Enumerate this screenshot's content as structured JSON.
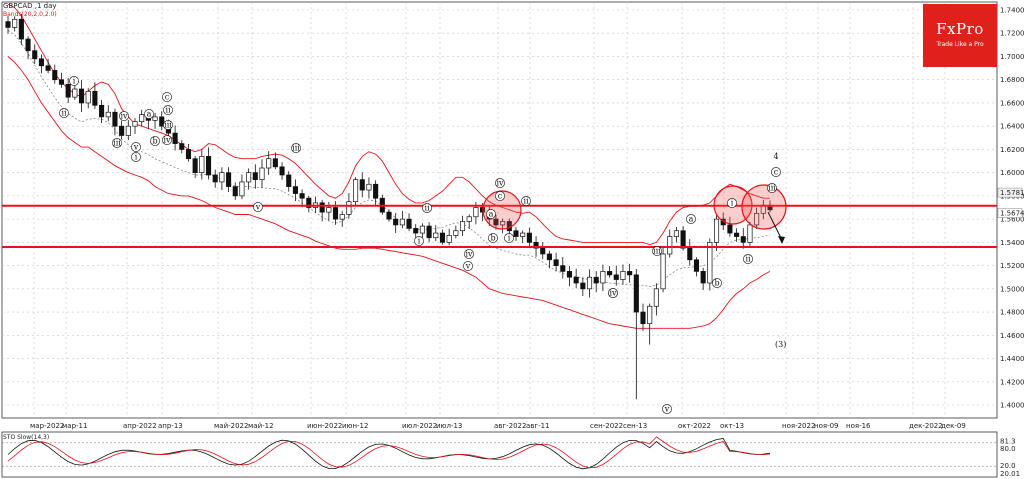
{
  "header": {
    "symbol": "GBPCAD ,1 day",
    "indicator": "Bands(20,2,0,2.0)"
  },
  "logo": {
    "brand": "FxPro",
    "tagline": "Trade Like a Pro"
  },
  "chart_data": {
    "type": "candlestick",
    "ylim": [
      1.38,
      1.75
    ],
    "y_ticks": [
      "1.7400",
      "1.7200",
      "1.7000",
      "1.6800",
      "1.6600",
      "1.6400",
      "1.6200",
      "1.6000",
      "1.5800",
      "1.5600",
      "1.5400",
      "1.5200",
      "1.5000",
      "1.4800",
      "1.4600",
      "1.4400",
      "1.4200",
      "1.4000"
    ],
    "y_tick_values": [
      1.74,
      1.72,
      1.7,
      1.68,
      1.66,
      1.64,
      1.62,
      1.6,
      1.58,
      1.56,
      1.54,
      1.52,
      1.5,
      1.48,
      1.46,
      1.44,
      1.42,
      1.4
    ],
    "x_ticks": [
      "мар-2022",
      "мар-11",
      "апр-2022",
      "апр-13",
      "май-2022",
      "май-12",
      "июн-2022",
      "июн-12",
      "июл-2022",
      "июл-13",
      "авг-2022",
      "авг-11",
      "сен-2022",
      "сен-13",
      "окт-2022",
      "окт-13",
      "ноя-2022",
      "ноя-09",
      "ноя-16",
      "дек-2022",
      "дек-09"
    ],
    "price_labels": [
      {
        "text": "1.5781",
        "value": 1.5781
      },
      {
        "text": "1.5674",
        "value": 1.5674
      }
    ],
    "levels": [
      {
        "name": "resistance",
        "value": 1.5715,
        "color": "#e3141b"
      },
      {
        "name": "support",
        "value": 1.536,
        "color": "#e3141b"
      }
    ],
    "closes": [
      1.725,
      1.732,
      1.715,
      1.705,
      1.698,
      1.692,
      1.688,
      1.68,
      1.676,
      1.665,
      1.672,
      1.66,
      1.67,
      1.658,
      1.648,
      1.652,
      1.64,
      1.632,
      1.64,
      1.644,
      1.65,
      1.645,
      1.648,
      1.64,
      1.634,
      1.625,
      1.62,
      1.612,
      1.6,
      1.614,
      1.598,
      1.592,
      1.6,
      1.588,
      1.58,
      1.592,
      1.6,
      1.594,
      1.604,
      1.612,
      1.605,
      1.598,
      1.588,
      1.582,
      1.578,
      1.57,
      1.574,
      1.566,
      1.57,
      1.56,
      1.564,
      1.575,
      1.594,
      1.585,
      1.59,
      1.578,
      1.566,
      1.56,
      1.555,
      1.56,
      1.552,
      1.548,
      1.554,
      1.544,
      1.548,
      1.54,
      1.546,
      1.55,
      1.558,
      1.562,
      1.57,
      1.566,
      1.56,
      1.555,
      1.558,
      1.55,
      1.545,
      1.548,
      1.54,
      1.535,
      1.53,
      1.525,
      1.52,
      1.515,
      1.51,
      1.505,
      1.5,
      1.51,
      1.505,
      1.515,
      1.512,
      1.508,
      1.515,
      1.512,
      1.48,
      1.47,
      1.485,
      1.5,
      1.53,
      1.545,
      1.55,
      1.535,
      1.525,
      1.515,
      1.505,
      1.54,
      1.56,
      1.555,
      1.548,
      1.545,
      1.54,
      1.555,
      1.565,
      1.572,
      1.568
    ],
    "bb_upper": [
      1.745,
      1.742,
      1.735,
      1.725,
      1.715,
      1.705,
      1.695,
      1.685,
      1.678,
      1.672,
      1.668,
      1.665,
      1.67,
      1.675,
      1.678,
      1.676,
      1.668,
      1.655,
      1.648,
      1.642,
      1.64,
      1.638,
      1.636,
      1.634,
      1.632,
      1.628,
      1.624,
      1.62,
      1.618,
      1.62,
      1.625,
      1.624,
      1.62,
      1.616,
      1.613,
      1.612,
      1.612,
      1.612,
      1.614,
      1.615,
      1.616,
      1.615,
      1.612,
      1.608,
      1.602,
      1.596,
      1.59,
      1.585,
      1.58,
      1.578,
      1.582,
      1.592,
      1.606,
      1.614,
      1.618,
      1.616,
      1.61,
      1.6,
      1.59,
      1.582,
      1.577,
      1.574,
      1.574,
      1.576,
      1.58,
      1.584,
      1.59,
      1.596,
      1.596,
      1.592,
      1.586,
      1.58,
      1.575,
      1.572,
      1.57,
      1.568,
      1.566,
      1.565,
      1.566,
      1.562,
      1.556,
      1.55,
      1.545,
      1.543,
      1.542,
      1.541,
      1.54,
      1.54,
      1.54,
      1.54,
      1.54,
      1.54,
      1.54,
      1.54,
      1.54,
      1.54,
      1.538,
      1.54,
      1.548,
      1.558,
      1.566,
      1.57,
      1.571,
      1.571,
      1.572,
      1.574,
      1.58,
      1.586,
      1.59,
      1.588,
      1.585,
      1.582,
      1.58,
      1.578,
      1.578
    ],
    "bb_lower": [
      1.7,
      1.695,
      1.688,
      1.68,
      1.67,
      1.66,
      1.652,
      1.644,
      1.636,
      1.63,
      1.626,
      1.622,
      1.622,
      1.618,
      1.614,
      1.61,
      1.606,
      1.603,
      1.6,
      1.598,
      1.596,
      1.593,
      1.588,
      1.585,
      1.582,
      1.581,
      1.58,
      1.58,
      1.578,
      1.576,
      1.573,
      1.57,
      1.568,
      1.566,
      1.564,
      1.564,
      1.564,
      1.562,
      1.56,
      1.558,
      1.556,
      1.553,
      1.55,
      1.548,
      1.546,
      1.544,
      1.541,
      1.539,
      1.537,
      1.535,
      1.534,
      1.534,
      1.534,
      1.535,
      1.535,
      1.535,
      1.534,
      1.533,
      1.532,
      1.531,
      1.53,
      1.529,
      1.528,
      1.526,
      1.524,
      1.522,
      1.52,
      1.518,
      1.516,
      1.513,
      1.51,
      1.505,
      1.5,
      1.498,
      1.496,
      1.495,
      1.494,
      1.493,
      1.492,
      1.491,
      1.49,
      1.488,
      1.486,
      1.484,
      1.482,
      1.48,
      1.478,
      1.476,
      1.474,
      1.472,
      1.47,
      1.469,
      1.468,
      1.467,
      1.466,
      1.466,
      1.466,
      1.466,
      1.466,
      1.466,
      1.466,
      1.466,
      1.466,
      1.467,
      1.468,
      1.47,
      1.475,
      1.482,
      1.49,
      1.496,
      1.5,
      1.505,
      1.508,
      1.512,
      1.515
    ],
    "wave_labels": [
      "i",
      "ii",
      "iii",
      "iv",
      "v",
      "i",
      "a",
      "b",
      "c",
      "ii",
      "iii",
      "iv",
      "v",
      "iii",
      "i",
      "ii",
      "iv",
      "v",
      "iii",
      "a",
      "b",
      "c",
      "iv",
      "ii",
      "i",
      "iv",
      "iii",
      "v",
      "a",
      "b",
      "i",
      "ii",
      "iii",
      "4",
      "c"
    ],
    "target_label": "(3)",
    "stochastic": {
      "title": "STO Slow(14,3)",
      "ticks": [
        "81.3",
        "80.0",
        "20.0",
        "20.01"
      ],
      "ylim": [
        0,
        100
      ]
    }
  }
}
